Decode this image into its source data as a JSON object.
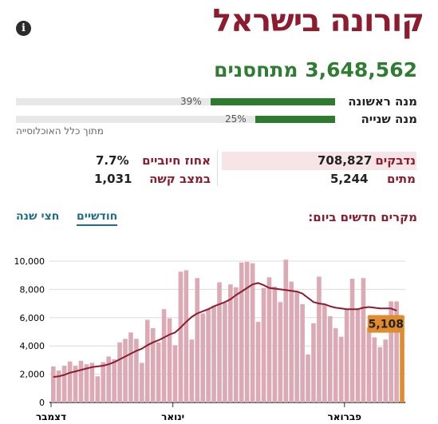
{
  "header": {
    "title": "קורונה בישראל",
    "info_icon": "info-icon"
  },
  "vaccinated": {
    "number": "3,648,562",
    "label": "מתחסנים"
  },
  "doses": [
    {
      "label": "מנה ראשונה",
      "percent_text": "39%",
      "fraction": 0.39
    },
    {
      "label": "מנה שנייה",
      "percent_text": "25%",
      "fraction": 0.25
    }
  ],
  "population_note": "מתוך כלל האוכלוסייה",
  "stats": {
    "confirmed": {
      "label": "נדבקים",
      "value": "708,827"
    },
    "deaths": {
      "label": "מתים",
      "value": "5,244"
    },
    "positive_rate": {
      "label": "אחוז חיוביים",
      "value": "7.7%"
    },
    "severe": {
      "label": "במצב קשה",
      "value": "1,031"
    }
  },
  "chart": {
    "heading": "מקרים חדשים ביום:",
    "tabs": {
      "monthly": "חודשיים",
      "half_year": "חצי שנה"
    },
    "highlight_label": "5,108"
  },
  "colors": {
    "title": "#8c1c2e",
    "vaccine_green": "#2e7d32",
    "bar": "#dbaab4",
    "line": "#8c1c2e",
    "highlight": "#e08c2e",
    "tab": "#1f6e8c"
  },
  "chart_data": {
    "type": "bar",
    "ylim": [
      0,
      10000
    ],
    "yticks": [
      0,
      2000,
      4000,
      6000,
      8000,
      10000
    ],
    "ytick_labels": [
      "0",
      "2,000",
      "4,000",
      "6,000",
      "8,000",
      "10,000"
    ],
    "xtick_labels": [
      {
        "label": "דצמבר",
        "index": 0
      },
      {
        "label": "ינואר",
        "index": 22
      },
      {
        "label": "פברואר",
        "index": 53
      }
    ],
    "values": [
      2550,
      2250,
      2600,
      2900,
      2600,
      2950,
      2700,
      2800,
      1850,
      2850,
      3250,
      3050,
      4250,
      4500,
      4950,
      4500,
      2800,
      5850,
      5250,
      4250,
      6600,
      5950,
      4050,
      9250,
      9350,
      4450,
      8800,
      6300,
      6600,
      6850,
      8500,
      7050,
      8350,
      8150,
      9900,
      9950,
      9850,
      5700,
      8100,
      8850,
      8200,
      7100,
      10100,
      8550,
      7800,
      6950,
      3400,
      5600,
      8900,
      6950,
      6100,
      5250,
      4650,
      6600,
      8750,
      6600,
      8800,
      5300,
      4600,
      3900,
      4450,
      7150,
      7150,
      5108
    ],
    "moving_average": [
      1800,
      1850,
      1950,
      2100,
      2200,
      2300,
      2400,
      2500,
      2550,
      2600,
      2700,
      2850,
      3050,
      3250,
      3450,
      3650,
      3800,
      4050,
      4250,
      4400,
      4600,
      4800,
      4950,
      5300,
      5700,
      6050,
      6300,
      6450,
      6600,
      6800,
      6950,
      7100,
      7300,
      7600,
      7850,
      8100,
      8350,
      8450,
      8300,
      8100,
      8050,
      8000,
      7950,
      7900,
      7850,
      7700,
      7400,
      7100,
      7000,
      6950,
      6800,
      6700,
      6650,
      6600,
      6600,
      6600,
      6700,
      6750,
      6700,
      6650,
      6650,
      6650,
      6500,
      null
    ],
    "highlight": {
      "index": 63,
      "value": 5108,
      "label": "5,108"
    }
  }
}
